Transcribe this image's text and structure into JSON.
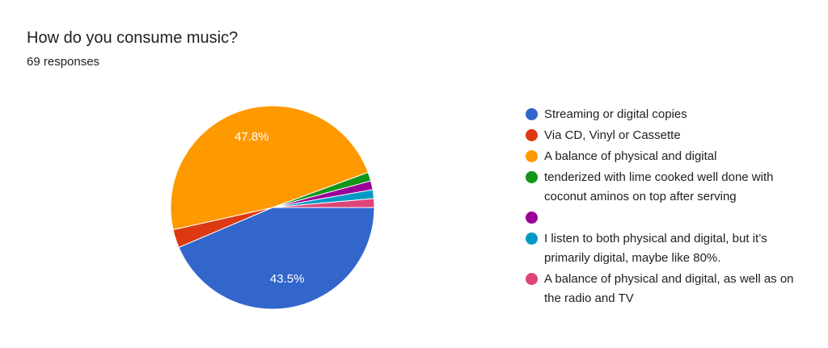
{
  "chart_data": {
    "type": "pie",
    "title": "How do you consume music?",
    "subtitle": "69 responses",
    "categories": [
      "Streaming or digital copies",
      "Via CD, Vinyl or Cassette",
      "A balance of physical and digital",
      "tenderized with lime cooked well done with coconut aminos on top after serving",
      null,
      "I listen to both physical and digital, but it’s primarily digital, maybe like 80%.",
      "A balance of physical and digital, as well as on the radio and TV"
    ],
    "values": [
      43.5,
      2.9,
      47.8,
      1.4,
      1.4,
      1.4,
      1.4
    ],
    "value_labels": [
      "43.5%",
      null,
      "47.8%",
      null,
      null,
      null,
      null
    ],
    "colors": [
      "#3366cc",
      "#dc3912",
      "#ff9900",
      "#109618",
      "#990099",
      "#0099c6",
      "#dd4477"
    ]
  }
}
